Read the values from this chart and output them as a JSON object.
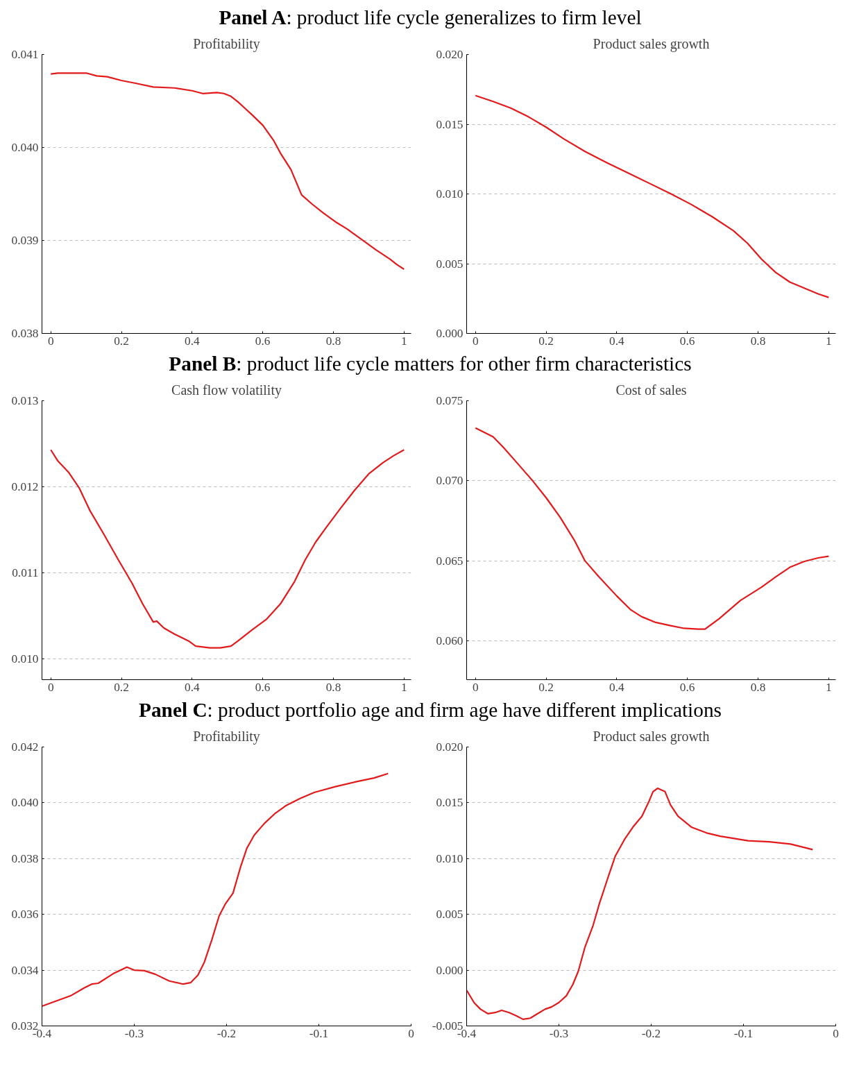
{
  "chart_data": [
    {
      "type": "line",
      "title": "Profitability",
      "annotations": [
        "Panel A: product life cycle generalizes to firm level"
      ],
      "grid": "y",
      "line_style": "solid",
      "xlim": [
        -0.025,
        1.02
      ],
      "ylim": [
        0.038,
        0.041
      ],
      "xticks": [
        0,
        0.2,
        0.4,
        0.6,
        0.8,
        1
      ],
      "yticks": [
        {
          "value": 0.038,
          "label": "0.038"
        },
        {
          "value": 0.039,
          "label": "0.039"
        },
        {
          "value": 0.04,
          "label": "0.040"
        },
        {
          "value": 0.041,
          "label": "0.041"
        }
      ],
      "x": [
        0,
        0.02,
        0.05,
        0.1,
        0.13,
        0.16,
        0.2,
        0.24,
        0.29,
        0.35,
        0.4,
        0.43,
        0.47,
        0.49,
        0.51,
        0.53,
        0.55,
        0.57,
        0.6,
        0.63,
        0.65,
        0.68,
        0.71,
        0.74,
        0.77,
        0.81,
        0.84,
        0.88,
        0.92,
        0.96,
        0.98,
        1
      ],
      "series": [
        {
          "color": "#e31a1c",
          "values": [
            0.04079,
            0.0408,
            0.0408,
            0.0408,
            0.04077,
            0.04076,
            0.04072,
            0.04069,
            0.04065,
            0.04064,
            0.04061,
            0.04058,
            0.04059,
            0.04058,
            0.04055,
            0.04049,
            0.04042,
            0.04035,
            0.04024,
            0.04008,
            0.03994,
            0.03976,
            0.03949,
            0.03939,
            0.0393,
            0.03919,
            0.03912,
            0.03901,
            0.0389,
            0.0388,
            0.03874,
            0.03869
          ]
        }
      ]
    },
    {
      "type": "line",
      "title": "Product sales growth",
      "grid": "y",
      "line_style": "solid",
      "xlim": [
        -0.025,
        1.02
      ],
      "ylim": [
        0,
        0.02
      ],
      "xticks": [
        0,
        0.2,
        0.4,
        0.6,
        0.8,
        1
      ],
      "yticks": [
        {
          "value": 0,
          "label": "0.000"
        },
        {
          "value": 0.005,
          "label": "0.005"
        },
        {
          "value": 0.01,
          "label": "0.010"
        },
        {
          "value": 0.015,
          "label": "0.015"
        },
        {
          "value": 0.02,
          "label": "0.020"
        }
      ],
      "x": [
        0,
        0.05,
        0.1,
        0.15,
        0.2,
        0.25,
        0.31,
        0.37,
        0.43,
        0.49,
        0.55,
        0.61,
        0.67,
        0.73,
        0.77,
        0.81,
        0.85,
        0.89,
        0.93,
        0.97,
        1
      ],
      "series": [
        {
          "color": "#e31a1c",
          "values": [
            0.01705,
            0.01663,
            0.01616,
            0.01553,
            0.01479,
            0.01395,
            0.01305,
            0.01226,
            0.01153,
            0.01079,
            0.01005,
            0.00926,
            0.00837,
            0.00737,
            0.00647,
            0.00532,
            0.00437,
            0.00368,
            0.00326,
            0.00284,
            0.00258
          ]
        }
      ]
    },
    {
      "type": "line",
      "title": "Cash flow volatility",
      "annotations": [
        "Panel B: product life cycle matters for other firm characteristics"
      ],
      "grid": "y",
      "line_style": "solid",
      "xlim": [
        -0.025,
        1.02
      ],
      "ylim": [
        0.00976,
        0.013
      ],
      "xticks": [
        0,
        0.2,
        0.4,
        0.6,
        0.8,
        1
      ],
      "yticks": [
        {
          "value": 0.01,
          "label": "0.010"
        },
        {
          "value": 0.011,
          "label": "0.011"
        },
        {
          "value": 0.012,
          "label": "0.012"
        },
        {
          "value": 0.013,
          "label": "0.013"
        }
      ],
      "x": [
        0,
        0.02,
        0.05,
        0.08,
        0.11,
        0.15,
        0.19,
        0.23,
        0.26,
        0.29,
        0.3,
        0.32,
        0.35,
        0.39,
        0.41,
        0.45,
        0.48,
        0.51,
        0.53,
        0.57,
        0.61,
        0.65,
        0.69,
        0.72,
        0.75,
        0.78,
        0.82,
        0.86,
        0.9,
        0.94,
        0.97,
        1
      ],
      "series": [
        {
          "color": "#e31a1c",
          "values": [
            0.01243,
            0.0123,
            0.01217,
            0.01199,
            0.01173,
            0.01145,
            0.01116,
            0.01088,
            0.01064,
            0.01043,
            0.01044,
            0.01036,
            0.01029,
            0.01021,
            0.01015,
            0.01013,
            0.01013,
            0.01015,
            0.01021,
            0.01034,
            0.01046,
            0.01064,
            0.0109,
            0.01115,
            0.01136,
            0.01153,
            0.01175,
            0.01196,
            0.01215,
            0.01228,
            0.01236,
            0.01243
          ]
        }
      ]
    },
    {
      "type": "line",
      "title": "Cost of sales",
      "grid": "y",
      "line_style": "solid",
      "xlim": [
        -0.025,
        1.02
      ],
      "ylim": [
        0.05757,
        0.075
      ],
      "xticks": [
        0,
        0.2,
        0.4,
        0.6,
        0.8,
        1
      ],
      "yticks": [
        {
          "value": 0.06,
          "label": "0.060"
        },
        {
          "value": 0.065,
          "label": "0.065"
        },
        {
          "value": 0.07,
          "label": "0.070"
        },
        {
          "value": 0.075,
          "label": "0.075"
        }
      ],
      "x": [
        0,
        0.05,
        0.08,
        0.12,
        0.16,
        0.2,
        0.24,
        0.28,
        0.31,
        0.35,
        0.4,
        0.44,
        0.47,
        0.51,
        0.55,
        0.59,
        0.63,
        0.65,
        0.69,
        0.75,
        0.81,
        0.85,
        0.89,
        0.93,
        0.97,
        1
      ],
      "series": [
        {
          "color": "#e31a1c",
          "values": [
            0.0733,
            0.07275,
            0.07206,
            0.07106,
            0.07005,
            0.06894,
            0.06771,
            0.06628,
            0.065,
            0.06399,
            0.0628,
            0.06193,
            0.06151,
            0.06115,
            0.06096,
            0.06078,
            0.06073,
            0.06073,
            0.06138,
            0.06252,
            0.06335,
            0.06399,
            0.06459,
            0.06495,
            0.06518,
            0.06528
          ]
        }
      ]
    },
    {
      "type": "line",
      "title": "Profitability",
      "annotations": [
        "Panel C: product portfolio age and firm age have different implications"
      ],
      "grid": "y",
      "line_style": "solid",
      "xlim": [
        -0.4,
        0
      ],
      "ylim": [
        0.032,
        0.042
      ],
      "xticks": [
        -0.4,
        -0.3,
        -0.2,
        -0.1,
        0
      ],
      "yticks": [
        {
          "value": 0.032,
          "label": "0.032"
        },
        {
          "value": 0.034,
          "label": "0.034"
        },
        {
          "value": 0.036,
          "label": "0.036"
        },
        {
          "value": 0.038,
          "label": "0.038"
        },
        {
          "value": 0.04,
          "label": "0.040"
        },
        {
          "value": 0.042,
          "label": "0.042"
        }
      ],
      "x": [
        -0.4,
        -0.385,
        -0.369,
        -0.354,
        -0.346,
        -0.339,
        -0.323,
        -0.308,
        -0.3,
        -0.289,
        -0.277,
        -0.262,
        -0.247,
        -0.239,
        -0.231,
        -0.224,
        -0.216,
        -0.208,
        -0.201,
        -0.193,
        -0.185,
        -0.178,
        -0.17,
        -0.159,
        -0.147,
        -0.136,
        -0.12,
        -0.105,
        -0.082,
        -0.059,
        -0.04,
        -0.025
      ],
      "series": [
        {
          "color": "#e31a1c",
          "values": [
            0.03271,
            0.03289,
            0.03308,
            0.03337,
            0.0335,
            0.03353,
            0.03387,
            0.03411,
            0.034,
            0.03398,
            0.03385,
            0.03361,
            0.0335,
            0.03355,
            0.03382,
            0.03429,
            0.03508,
            0.03595,
            0.03639,
            0.03676,
            0.03768,
            0.03837,
            0.03884,
            0.03926,
            0.03963,
            0.03989,
            0.04016,
            0.04037,
            0.04058,
            0.04076,
            0.04089,
            0.04105
          ]
        }
      ]
    },
    {
      "type": "line",
      "title": "Product sales growth",
      "grid": "y",
      "line_style": "solid",
      "xlim": [
        -0.4,
        0
      ],
      "ylim": [
        -0.005,
        0.02
      ],
      "xticks": [
        -0.4,
        -0.3,
        -0.2,
        -0.1,
        0
      ],
      "yticks": [
        {
          "value": -0.005,
          "label": "-0.005"
        },
        {
          "value": 0,
          "label": "0.000"
        },
        {
          "value": 0.005,
          "label": "0.005"
        },
        {
          "value": 0.01,
          "label": "0.010"
        },
        {
          "value": 0.015,
          "label": "0.015"
        },
        {
          "value": 0.02,
          "label": "0.020"
        }
      ],
      "x": [
        -0.4,
        -0.392,
        -0.385,
        -0.377,
        -0.369,
        -0.362,
        -0.354,
        -0.346,
        -0.339,
        -0.331,
        -0.323,
        -0.315,
        -0.308,
        -0.3,
        -0.292,
        -0.285,
        -0.279,
        -0.272,
        -0.263,
        -0.256,
        -0.246,
        -0.239,
        -0.229,
        -0.22,
        -0.21,
        -0.202,
        -0.198,
        -0.193,
        -0.185,
        -0.179,
        -0.171,
        -0.156,
        -0.14,
        -0.125,
        -0.11,
        -0.095,
        -0.072,
        -0.049,
        -0.025
      ],
      "series": [
        {
          "color": "#e31a1c",
          "values": [
            -0.0018,
            -0.0029,
            -0.0035,
            -0.0039,
            -0.0038,
            -0.0036,
            -0.0038,
            -0.0041,
            -0.0044,
            -0.0043,
            -0.0039,
            -0.0035,
            -0.0033,
            -0.0029,
            -0.0023,
            -0.0013,
            -0.0001,
            0.002,
            0.004,
            0.006,
            0.0085,
            0.0102,
            0.0117,
            0.0128,
            0.0138,
            0.0152,
            0.016,
            0.0163,
            0.016,
            0.0148,
            0.0138,
            0.0128,
            0.0123,
            0.012,
            0.0118,
            0.0116,
            0.0115,
            0.0113,
            0.0108
          ]
        }
      ]
    }
  ]
}
